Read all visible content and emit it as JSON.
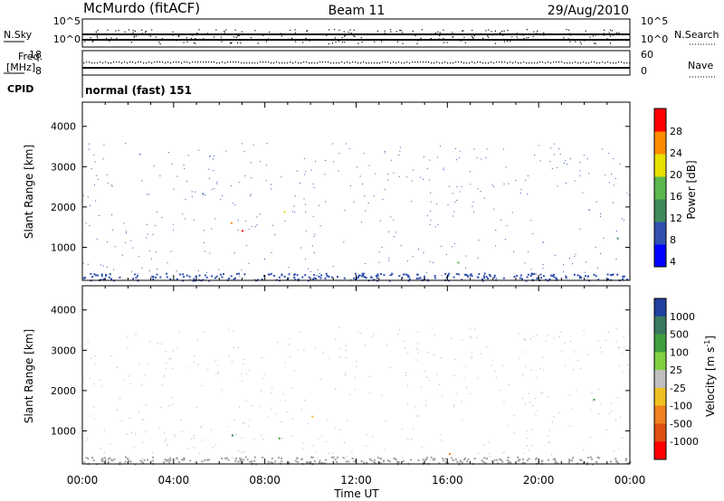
{
  "header": {
    "station": "McMurdo (fitACF)",
    "beam": "Beam 11",
    "date": "29/Aug/2010"
  },
  "status_panels": {
    "nsky": {
      "label": "N.Sky",
      "ticks": [
        "10^5",
        "10^0"
      ]
    },
    "nsearch": {
      "label": "N.Search",
      "ticks": [
        "10^5",
        "10^0"
      ]
    },
    "freq": {
      "label_line1": "Freq.",
      "label_line2": "[MHz]",
      "ticks": [
        "18",
        "8"
      ]
    },
    "nave": {
      "label": "Nave",
      "ticks": [
        "60",
        "0"
      ]
    },
    "cpid": {
      "label": "CPID",
      "value": "normal (fast) 151"
    }
  },
  "chart_data": [
    {
      "type": "heatmap",
      "name": "power",
      "ylabel": "Slant Range [km]",
      "yticks": [
        "1000",
        "2000",
        "3000",
        "4000"
      ],
      "ylim": [
        180,
        4600
      ],
      "xlim_hours": [
        0,
        24
      ],
      "colorbar": {
        "label": "Power [dB]",
        "ticks": [
          "28",
          "24",
          "20",
          "16",
          "12",
          "8",
          "4"
        ],
        "colors": [
          "#0000ff",
          "#3050b0",
          "#3f8a5c",
          "#5ab84e",
          "#e8e000",
          "#ff8c00",
          "#ff0000"
        ]
      }
    },
    {
      "type": "heatmap",
      "name": "velocity",
      "ylabel": "Slant Range [km]",
      "yticks": [
        "1000",
        "2000",
        "3000",
        "4000"
      ],
      "ylim": [
        180,
        4600
      ],
      "xlim_hours": [
        0,
        24
      ],
      "xlabel": "Time UT",
      "xticks": [
        "00:00",
        "04:00",
        "08:00",
        "12:00",
        "16:00",
        "20:00",
        "00:00"
      ],
      "colorbar": {
        "label_main": "Velocity  [m s",
        "label_sup": "-1",
        "label_end": "]",
        "ticks": [
          "1000",
          "500",
          "100",
          "25",
          "-25",
          "-100",
          "-500",
          "-1000"
        ],
        "colors": [
          "#2040a0",
          "#3a7a60",
          "#40a040",
          "#80d040",
          "#c0c0c0",
          "#f0c020",
          "#f08020",
          "#e05010",
          "#ff0000"
        ]
      }
    }
  ]
}
